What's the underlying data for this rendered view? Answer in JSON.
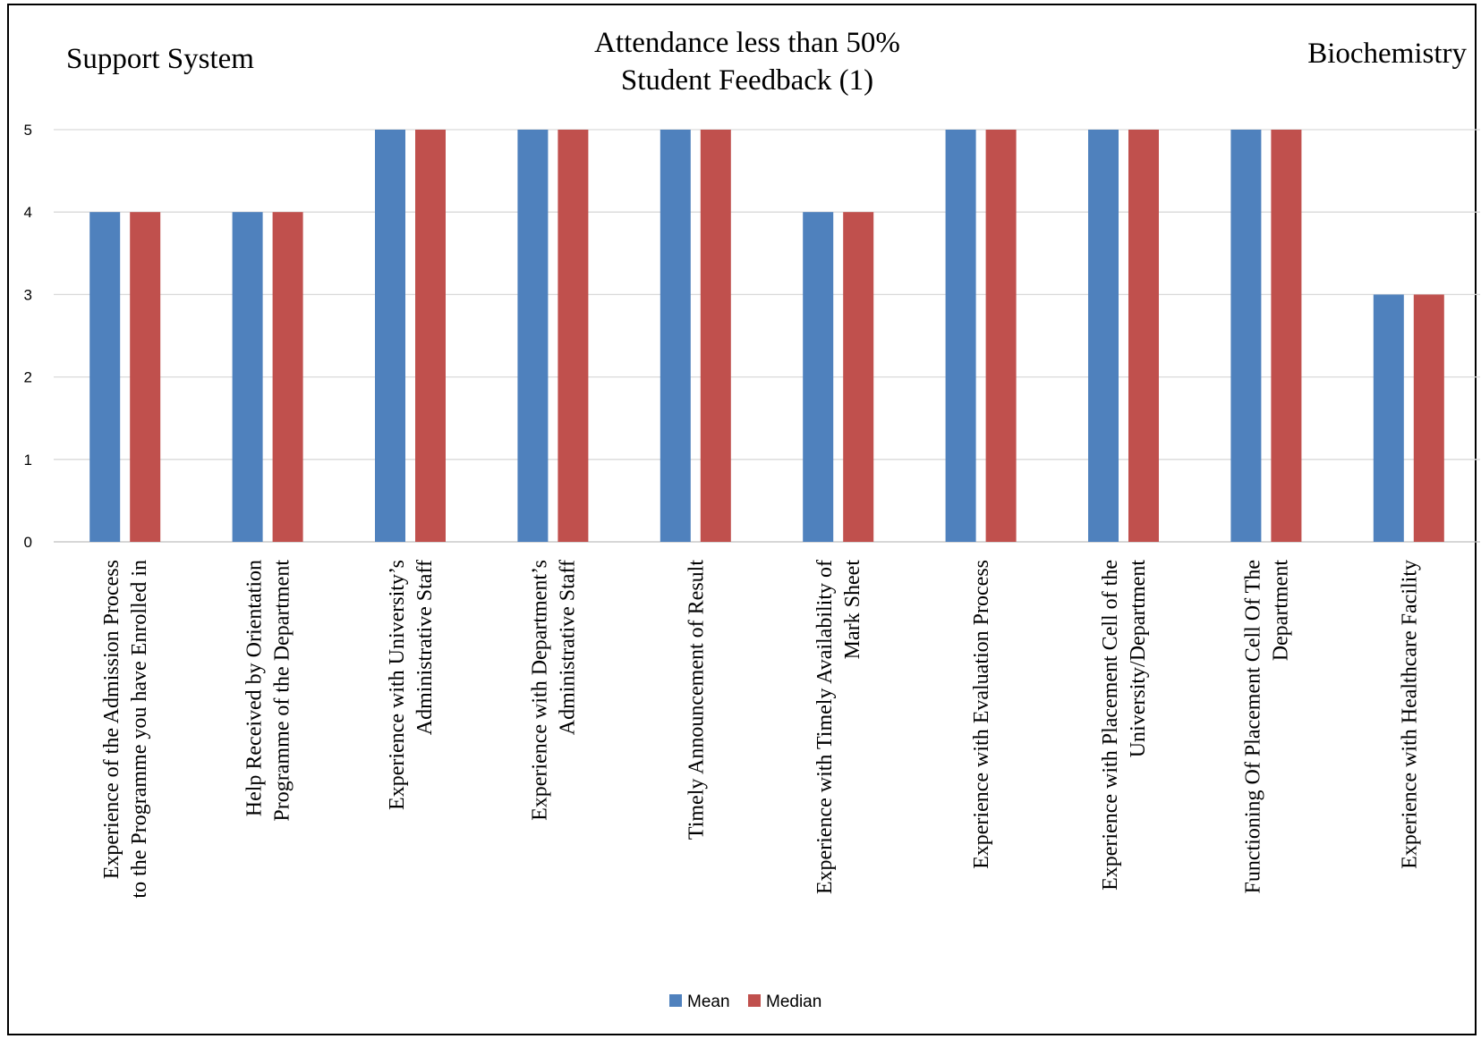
{
  "chart_data": {
    "type": "bar",
    "title_lines": [
      "Attendance less than 50%",
      "Student Feedback (1)"
    ],
    "left_heading": "Support System",
    "right_heading": "Biochemistry",
    "ylim": [
      0,
      5
    ],
    "yticks": [
      "0",
      "1",
      "2",
      "3",
      "4",
      "5"
    ],
    "grid": true,
    "legend_position": "bottom",
    "categories": [
      [
        "Experience of the Admission Process",
        "to the Programme you have Enrolled in"
      ],
      [
        "Help Received by Orientation",
        "Programme of the Department"
      ],
      [
        "Experience with University’s",
        "Administrative Staff"
      ],
      [
        "Experience with Department’s",
        "Administrative Staff"
      ],
      [
        "Timely Announcement of Result"
      ],
      [
        "Experience with Timely Availability of",
        "Mark Sheet"
      ],
      [
        "Experience with Evaluation Process"
      ],
      [
        "Experience with Placement Cell of the",
        "University/Department"
      ],
      [
        "Functioning Of Placement Cell Of The",
        "Department"
      ],
      [
        "Experience with Healthcare Facility"
      ]
    ],
    "series": [
      {
        "name": "Mean",
        "color": "#4f81bd",
        "values": [
          4,
          4,
          5,
          5,
          5,
          4,
          5,
          5,
          5,
          3
        ]
      },
      {
        "name": "Median",
        "color": "#c0504d",
        "values": [
          4,
          4,
          5,
          5,
          5,
          4,
          5,
          5,
          5,
          3
        ]
      }
    ]
  }
}
